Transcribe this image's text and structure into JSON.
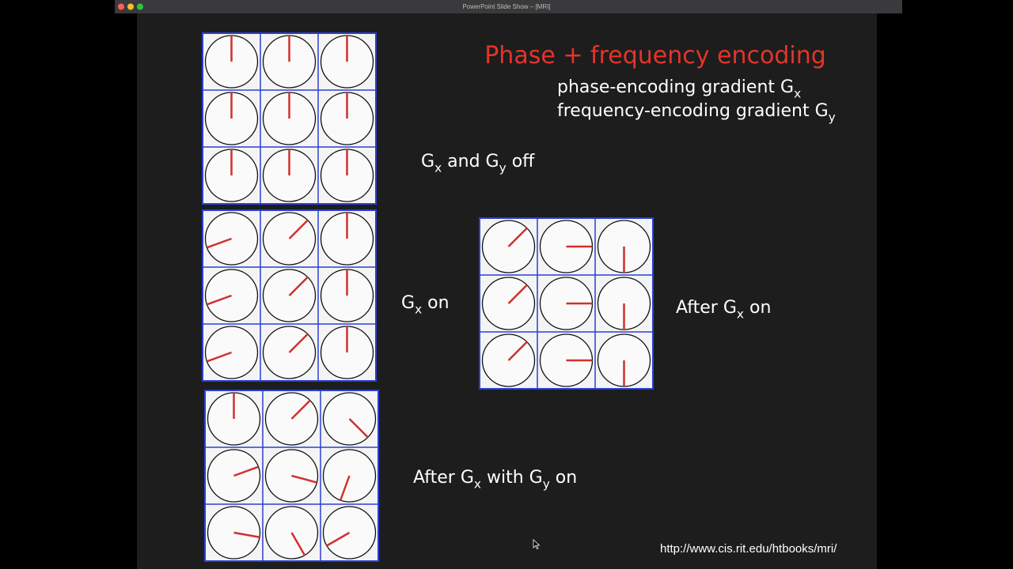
{
  "window": {
    "title": "PowerPoint Slide Show – [MRI]"
  },
  "slide": {
    "title": "Phase + frequency encoding",
    "subtitle_lines": [
      [
        "phase-encoding gradient G",
        "x"
      ],
      [
        "frequency-encoding gradient G",
        "y"
      ]
    ],
    "captions": [
      [
        "G",
        "x",
        " and G",
        "y",
        " off"
      ],
      [
        "G",
        "x",
        " on"
      ],
      [
        "After G",
        "x",
        " on"
      ],
      [
        "After G",
        "x",
        " with  G",
        "y",
        " on"
      ]
    ],
    "url": "http://www.cis.rit.edu/htbooks/mri/"
  }
}
